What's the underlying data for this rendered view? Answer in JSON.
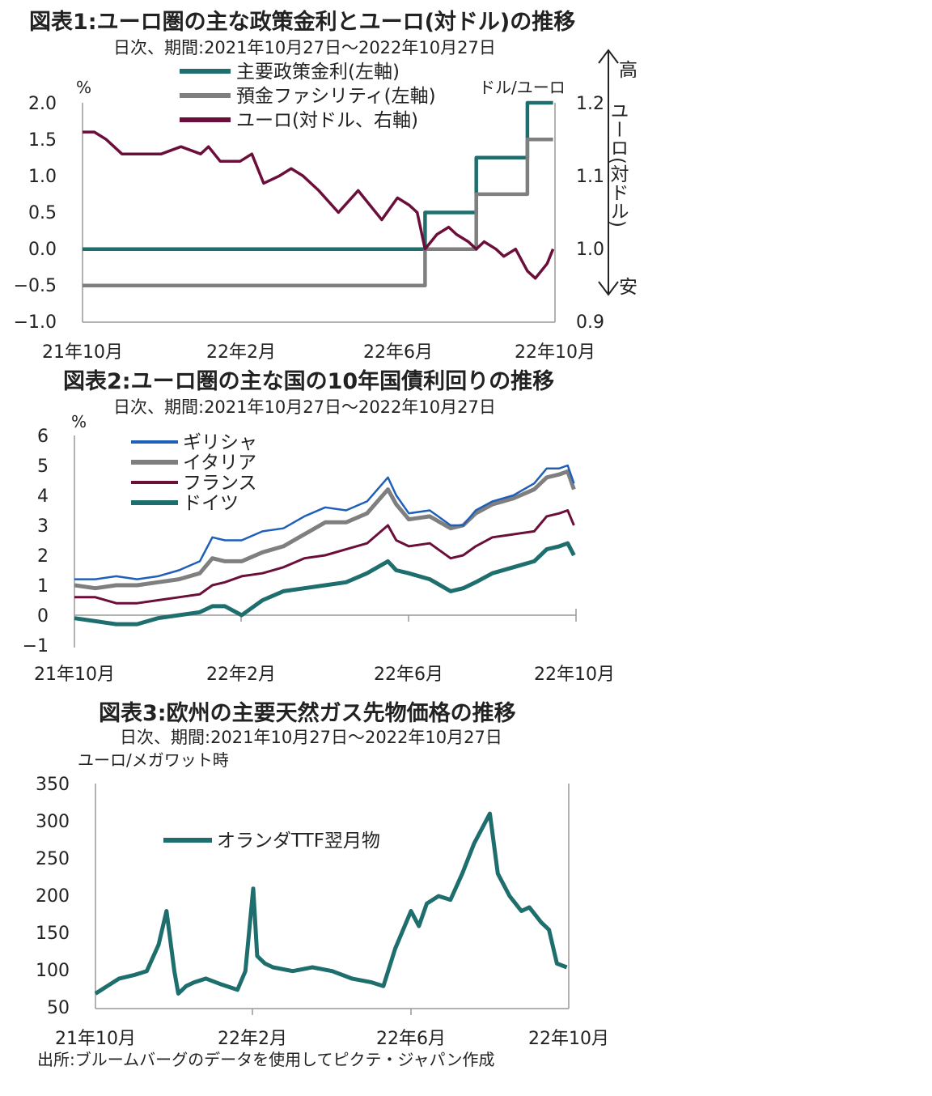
{
  "colors": {
    "teal": "#1f6e6e",
    "gray": "#7f7f7f",
    "maroon": "#6b0f3a",
    "blue": "#1f5fb8",
    "axis": "#999999"
  },
  "chart_data": [
    {
      "type": "line",
      "title": "図表1:ユーロ圏の主な政策金利とユーロ(対ドル)の推移",
      "subtitle": "日次、期間:2021年10月27日～2022年10月27日",
      "ylabel_left": "%",
      "ylabel_right": "ドル/ユーロ",
      "ylim_left": [
        -1.0,
        2.0
      ],
      "ylim_right": [
        0.9,
        1.2
      ],
      "yticks_left": [
        "2.0",
        "1.5",
        "1.0",
        "0.5",
        "0.0",
        "−0.5",
        "−1.0"
      ],
      "yticks_right": [
        "1.2",
        "1.1",
        "1.0",
        "0.9"
      ],
      "xticks": [
        "21年10月",
        "22年2月",
        "22年6月",
        "22年10月"
      ],
      "xlim": [
        0,
        12
      ],
      "arrow_labels": {
        "top": "高",
        "middle": "ユーロ(対ドル)",
        "bottom": "安"
      },
      "series": [
        {
          "name": "主要政策金利(左軸)",
          "axis": "left",
          "color": "#1f6e6e",
          "step": true,
          "x": [
            0,
            8.7,
            8.7,
            10.0,
            10.0,
            11.3,
            11.3,
            11.95,
            11.95
          ],
          "y": [
            0.0,
            0.0,
            0.5,
            0.5,
            1.25,
            1.25,
            2.0,
            2.0,
            2.0
          ]
        },
        {
          "name": "預金ファシリティ(左軸)",
          "axis": "left",
          "color": "#7f7f7f",
          "step": true,
          "x": [
            0,
            8.7,
            8.7,
            10.0,
            10.0,
            11.3,
            11.3,
            11.95,
            11.95
          ],
          "y": [
            -0.5,
            -0.5,
            0.0,
            0.0,
            0.75,
            0.75,
            1.5,
            1.5,
            1.5
          ]
        },
        {
          "name": "ユーロ(対ドル、右軸)",
          "axis": "right",
          "color": "#6b0f3a",
          "x": [
            0,
            0.3,
            0.6,
            1.0,
            1.5,
            2.0,
            2.5,
            3.0,
            3.2,
            3.5,
            4.0,
            4.3,
            4.6,
            5.0,
            5.3,
            5.6,
            6.0,
            6.5,
            7.0,
            7.3,
            7.6,
            8.0,
            8.3,
            8.5,
            8.7,
            9.0,
            9.3,
            9.5,
            9.8,
            10.0,
            10.2,
            10.5,
            10.7,
            11.0,
            11.3,
            11.5,
            11.8,
            11.95
          ],
          "y": [
            1.16,
            1.16,
            1.15,
            1.13,
            1.13,
            1.13,
            1.14,
            1.13,
            1.14,
            1.12,
            1.12,
            1.13,
            1.09,
            1.1,
            1.11,
            1.1,
            1.08,
            1.05,
            1.08,
            1.06,
            1.04,
            1.07,
            1.06,
            1.05,
            1.0,
            1.02,
            1.03,
            1.02,
            1.01,
            1.0,
            1.01,
            1.0,
            0.99,
            1.0,
            0.97,
            0.96,
            0.98,
            1.0
          ]
        }
      ]
    },
    {
      "type": "line",
      "title": "図表2:ユーロ圏の主な国の10年国債利回りの推移",
      "subtitle": "日次、期間:2021年10月27日～2022年10月27日",
      "ylabel": "%",
      "ylim": [
        -1,
        6
      ],
      "yticks": [
        "6",
        "5",
        "4",
        "3",
        "2",
        "1",
        "0",
        "−1"
      ],
      "xticks": [
        "21年10月",
        "22年2月",
        "22年6月",
        "22年10月"
      ],
      "xlim": [
        0,
        12
      ],
      "series": [
        {
          "name": "ギリシャ",
          "color": "#1f5fb8",
          "x": [
            0,
            0.5,
            1.0,
            1.5,
            2.0,
            2.5,
            3.0,
            3.3,
            3.6,
            4.0,
            4.5,
            5.0,
            5.5,
            6.0,
            6.5,
            7.0,
            7.5,
            7.7,
            8.0,
            8.5,
            9.0,
            9.3,
            9.6,
            10.0,
            10.5,
            11.0,
            11.3,
            11.6,
            11.8,
            11.95
          ],
          "y": [
            1.2,
            1.2,
            1.3,
            1.2,
            1.3,
            1.5,
            1.8,
            2.6,
            2.5,
            2.5,
            2.8,
            2.9,
            3.3,
            3.6,
            3.5,
            3.8,
            4.6,
            4.0,
            3.4,
            3.5,
            3.0,
            3.0,
            3.5,
            3.8,
            4.0,
            4.4,
            4.9,
            4.9,
            5.0,
            4.4
          ]
        },
        {
          "name": "イタリア",
          "color": "#7f7f7f",
          "x": [
            0,
            0.5,
            1.0,
            1.5,
            2.0,
            2.5,
            3.0,
            3.3,
            3.6,
            4.0,
            4.5,
            5.0,
            5.5,
            6.0,
            6.5,
            7.0,
            7.5,
            7.7,
            8.0,
            8.5,
            9.0,
            9.3,
            9.6,
            10.0,
            10.5,
            11.0,
            11.3,
            11.6,
            11.8,
            11.95
          ],
          "y": [
            1.0,
            0.9,
            1.0,
            1.0,
            1.1,
            1.2,
            1.4,
            1.9,
            1.8,
            1.8,
            2.1,
            2.3,
            2.7,
            3.1,
            3.1,
            3.4,
            4.2,
            3.7,
            3.2,
            3.3,
            2.9,
            3.0,
            3.4,
            3.7,
            3.9,
            4.2,
            4.6,
            4.7,
            4.8,
            4.2
          ]
        },
        {
          "name": "フランス",
          "color": "#6b0f3a",
          "x": [
            0,
            0.5,
            1.0,
            1.5,
            2.0,
            2.5,
            3.0,
            3.3,
            3.6,
            4.0,
            4.5,
            5.0,
            5.5,
            6.0,
            6.5,
            7.0,
            7.5,
            7.7,
            8.0,
            8.5,
            9.0,
            9.3,
            9.6,
            10.0,
            10.5,
            11.0,
            11.3,
            11.6,
            11.8,
            11.95
          ],
          "y": [
            0.6,
            0.6,
            0.4,
            0.4,
            0.5,
            0.6,
            0.7,
            1.0,
            1.1,
            1.3,
            1.4,
            1.6,
            1.9,
            2.0,
            2.2,
            2.4,
            3.0,
            2.5,
            2.3,
            2.4,
            1.9,
            2.0,
            2.3,
            2.6,
            2.7,
            2.8,
            3.3,
            3.4,
            3.5,
            3.0
          ]
        },
        {
          "name": "ドイツ",
          "color": "#1f6e6e",
          "x": [
            0,
            0.5,
            1.0,
            1.5,
            2.0,
            2.5,
            3.0,
            3.3,
            3.6,
            4.0,
            4.5,
            5.0,
            5.5,
            6.0,
            6.5,
            7.0,
            7.5,
            7.7,
            8.0,
            8.5,
            9.0,
            9.3,
            9.6,
            10.0,
            10.5,
            11.0,
            11.3,
            11.6,
            11.8,
            11.95
          ],
          "y": [
            -0.1,
            -0.2,
            -0.3,
            -0.3,
            -0.1,
            0.0,
            0.1,
            0.3,
            0.3,
            0.0,
            0.5,
            0.8,
            0.9,
            1.0,
            1.1,
            1.4,
            1.8,
            1.5,
            1.4,
            1.2,
            0.8,
            0.9,
            1.1,
            1.4,
            1.6,
            1.8,
            2.2,
            2.3,
            2.4,
            2.0
          ]
        }
      ]
    },
    {
      "type": "line",
      "title": "図表3:欧州の主要天然ガス先物価格の推移",
      "subtitle": "日次、期間:2021年10月27日～2022年10月27日",
      "ylabel": "ユーロ/メガワット時",
      "ylim": [
        50,
        350
      ],
      "yticks": [
        "350",
        "300",
        "250",
        "200",
        "150",
        "100",
        "50"
      ],
      "xticks": [
        "21年10月",
        "22年2月",
        "22年6月",
        "22年10月"
      ],
      "xlim": [
        0,
        12
      ],
      "series": [
        {
          "name": "オランダTTF翌月物",
          "color": "#1f6e6e",
          "x": [
            0,
            0.3,
            0.6,
            1.0,
            1.3,
            1.6,
            1.8,
            2.0,
            2.1,
            2.3,
            2.5,
            2.8,
            3.2,
            3.6,
            3.8,
            4.0,
            4.1,
            4.3,
            4.5,
            5.0,
            5.5,
            6.0,
            6.5,
            7.0,
            7.3,
            7.6,
            8.0,
            8.2,
            8.4,
            8.7,
            9.0,
            9.3,
            9.6,
            10.0,
            10.2,
            10.5,
            10.8,
            11.0,
            11.3,
            11.5,
            11.7,
            11.95
          ],
          "y": [
            70,
            80,
            90,
            95,
            100,
            135,
            180,
            100,
            70,
            80,
            85,
            90,
            82,
            75,
            100,
            210,
            120,
            110,
            105,
            100,
            105,
            100,
            90,
            85,
            80,
            130,
            180,
            160,
            190,
            200,
            195,
            230,
            270,
            310,
            230,
            200,
            180,
            185,
            165,
            155,
            110,
            105
          ]
        }
      ]
    }
  ],
  "source": "出所:ブルームバーグのデータを使用してピクテ・ジャパン作成"
}
